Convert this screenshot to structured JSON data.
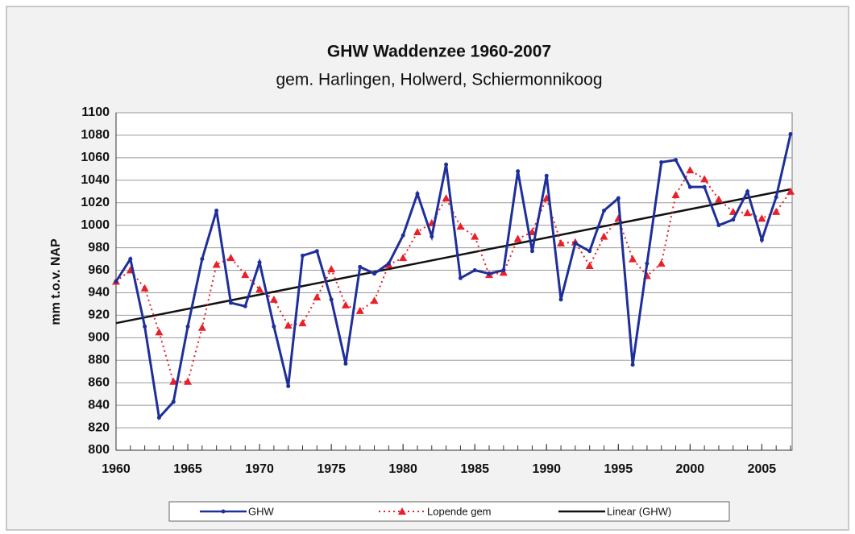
{
  "chart_data": {
    "type": "line",
    "title": "GHW Waddenzee 1960-2007",
    "subtitle": "gem. Harlingen, Holwerd, Schiermonnikoog",
    "y_label": "mm t.o.v. NAP",
    "x": [
      1960,
      1961,
      1962,
      1963,
      1964,
      1965,
      1966,
      1967,
      1968,
      1969,
      1970,
      1971,
      1972,
      1973,
      1974,
      1975,
      1976,
      1977,
      1978,
      1979,
      1980,
      1981,
      1982,
      1983,
      1984,
      1985,
      1986,
      1987,
      1988,
      1989,
      1990,
      1991,
      1992,
      1993,
      1994,
      1995,
      1996,
      1997,
      1998,
      1999,
      2000,
      2001,
      2002,
      2003,
      2004,
      2005,
      2006,
      2007
    ],
    "series": [
      {
        "name": "GHW",
        "color": "#1f2f9a",
        "style": "solid",
        "marker": "dot",
        "values": [
          950,
          970,
          910,
          829,
          843,
          910,
          970,
          1013,
          931,
          928,
          967,
          910,
          857,
          973,
          977,
          934,
          877,
          963,
          957,
          966,
          991,
          1028,
          990,
          1054,
          953,
          960,
          957,
          960,
          1048,
          977,
          1044,
          934,
          984,
          977,
          1013,
          1024,
          876,
          966,
          1056,
          1058,
          1034,
          1034,
          1000,
          1005,
          1030,
          987,
          1025,
          1081
        ]
      },
      {
        "name": "Lopende gem",
        "color": "#e8202a",
        "style": "dotted",
        "marker": "triangle",
        "values": [
          950,
          960,
          944,
          905,
          861,
          861,
          909,
          965,
          971,
          956,
          943,
          934,
          911,
          913,
          936,
          961,
          929,
          924,
          933,
          965,
          971,
          994,
          1002,
          1024,
          999,
          990,
          956,
          958,
          988,
          994,
          1024,
          984,
          985,
          964,
          990,
          1006,
          970,
          955,
          966,
          1027,
          1049,
          1041,
          1023,
          1012,
          1011,
          1006,
          1012,
          1030
        ]
      }
    ],
    "trend": {
      "name": "Linear (GHW)",
      "color": "#111111",
      "x": [
        1960,
        2007
      ],
      "values": [
        913,
        1032
      ]
    },
    "xlim": [
      1960,
      2007
    ],
    "xticks": [
      1960,
      1965,
      1970,
      1975,
      1980,
      1985,
      1990,
      1995,
      2000,
      2005
    ],
    "ylim": [
      800,
      1100
    ],
    "yticks": [
      800,
      820,
      840,
      860,
      880,
      900,
      920,
      940,
      960,
      980,
      1000,
      1020,
      1040,
      1060,
      1080,
      1100
    ],
    "grid": true,
    "legend": "bottom"
  }
}
